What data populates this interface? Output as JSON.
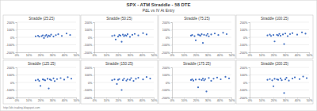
{
  "title": "SPX - ATM Straddle - 58 DTE",
  "subtitle": "P&L vs IV At Entry",
  "footer": "http://dtr-trading.blogspot.com",
  "chart_data": [
    {
      "type": "scatter",
      "title": "Straddle (25:25)",
      "color": "#4472c4",
      "marker": "circle",
      "grid": true,
      "x": [
        16,
        18,
        19,
        21,
        22,
        23,
        24,
        25,
        26,
        27,
        28,
        29,
        31,
        33,
        35,
        38,
        42,
        45
      ],
      "values": [
        12,
        20,
        8,
        15,
        25,
        -10,
        18,
        30,
        5,
        22,
        14,
        35,
        10,
        28,
        40,
        18,
        50,
        30
      ],
      "xlim": [
        0,
        50
      ],
      "xticks": [
        {
          "value": 0,
          "label": "0%"
        },
        {
          "value": 10,
          "label": "10%"
        },
        {
          "value": 20,
          "label": "20%"
        },
        {
          "value": 30,
          "label": "30%"
        },
        {
          "value": 40,
          "label": "40%"
        },
        {
          "value": 50,
          "label": "50%"
        }
      ],
      "ylim": [
        -200,
        200
      ],
      "yticks": [
        {
          "value": -200,
          "label": "-200%"
        },
        {
          "value": -100,
          "label": "-100%"
        },
        {
          "value": 0,
          "label": "0%"
        },
        {
          "value": 100,
          "label": "100%"
        },
        {
          "value": 200,
          "label": "200%"
        }
      ]
    },
    {
      "type": "scatter",
      "title": "Straddle (50:25)",
      "color": "#4472c4",
      "marker": "circle",
      "grid": true,
      "x": [
        15,
        17,
        18,
        20,
        21,
        22,
        23,
        24,
        25,
        26,
        27,
        28,
        30,
        32,
        34,
        37,
        41,
        44
      ],
      "values": [
        18,
        25,
        -30,
        10,
        30,
        22,
        -60,
        35,
        15,
        28,
        20,
        40,
        5,
        32,
        45,
        25,
        55,
        38
      ],
      "xlim": [
        0,
        50
      ],
      "xticks": [
        {
          "value": 0,
          "label": "0%"
        },
        {
          "value": 10,
          "label": "10%"
        },
        {
          "value": 20,
          "label": "20%"
        },
        {
          "value": 30,
          "label": "30%"
        },
        {
          "value": 40,
          "label": "40%"
        },
        {
          "value": 50,
          "label": "50%"
        }
      ],
      "ylim": [
        -200,
        200
      ],
      "yticks": [
        {
          "value": -200,
          "label": "-200%"
        },
        {
          "value": -100,
          "label": "-100%"
        },
        {
          "value": 0,
          "label": "0%"
        },
        {
          "value": 100,
          "label": "100%"
        },
        {
          "value": 200,
          "label": "200%"
        }
      ]
    },
    {
      "type": "scatter",
      "title": "Straddle (75:25)",
      "color": "#4472c4",
      "marker": "circle",
      "grid": true,
      "x": [
        16,
        17,
        19,
        20,
        22,
        23,
        24,
        25,
        26,
        27,
        29,
        30,
        31,
        33,
        36,
        39,
        43,
        46
      ],
      "values": [
        22,
        30,
        15,
        -40,
        35,
        28,
        20,
        40,
        -75,
        32,
        25,
        45,
        12,
        38,
        50,
        30,
        60,
        42
      ],
      "xlim": [
        0,
        50
      ],
      "xticks": [
        {
          "value": 0,
          "label": "0%"
        },
        {
          "value": 10,
          "label": "10%"
        },
        {
          "value": 20,
          "label": "20%"
        },
        {
          "value": 30,
          "label": "30%"
        },
        {
          "value": 40,
          "label": "40%"
        },
        {
          "value": 50,
          "label": "50%"
        }
      ],
      "ylim": [
        -200,
        200
      ],
      "yticks": [
        {
          "value": -200,
          "label": "-200%"
        },
        {
          "value": -100,
          "label": "-100%"
        },
        {
          "value": 0,
          "label": "0%"
        },
        {
          "value": 100,
          "label": "100%"
        },
        {
          "value": 200,
          "label": "200%"
        }
      ]
    },
    {
      "type": "scatter",
      "title": "Straddle (100:25)",
      "color": "#4472c4",
      "marker": "circle",
      "grid": true,
      "x": [
        15,
        17,
        18,
        20,
        21,
        23,
        24,
        25,
        26,
        28,
        29,
        30,
        32,
        34,
        36,
        40,
        44,
        47
      ],
      "values": [
        25,
        35,
        18,
        30,
        -55,
        32,
        25,
        45,
        20,
        38,
        -90,
        50,
        15,
        42,
        55,
        35,
        65,
        48
      ],
      "xlim": [
        0,
        50
      ],
      "xticks": [
        {
          "value": 0,
          "label": "0%"
        },
        {
          "value": 10,
          "label": "10%"
        },
        {
          "value": 20,
          "label": "20%"
        },
        {
          "value": 30,
          "label": "30%"
        },
        {
          "value": 40,
          "label": "40%"
        },
        {
          "value": 50,
          "label": "50%"
        }
      ],
      "ylim": [
        -200,
        200
      ],
      "yticks": [
        {
          "value": -200,
          "label": "-200%"
        },
        {
          "value": -100,
          "label": "-100%"
        },
        {
          "value": 0,
          "label": "0%"
        },
        {
          "value": 100,
          "label": "100%"
        },
        {
          "value": 200,
          "label": "200%"
        }
      ]
    },
    {
      "type": "scatter",
      "title": "Straddle (125:25)",
      "color": "#4472c4",
      "marker": "circle",
      "grid": true,
      "x": [
        16,
        18,
        19,
        20,
        22,
        23,
        24,
        26,
        27,
        28,
        29,
        31,
        32,
        34,
        37,
        40,
        43,
        46
      ],
      "values": [
        28,
        38,
        20,
        -45,
        40,
        35,
        28,
        48,
        -80,
        40,
        30,
        55,
        18,
        45,
        58,
        38,
        70,
        50
      ],
      "xlim": [
        0,
        50
      ],
      "xticks": [
        {
          "value": 0,
          "label": "0%"
        },
        {
          "value": 10,
          "label": "10%"
        },
        {
          "value": 20,
          "label": "20%"
        },
        {
          "value": 30,
          "label": "30%"
        },
        {
          "value": 40,
          "label": "40%"
        },
        {
          "value": 50,
          "label": "50%"
        }
      ],
      "ylim": [
        -200,
        200
      ],
      "yticks": [
        {
          "value": -200,
          "label": "-200%"
        },
        {
          "value": -100,
          "label": "-100%"
        },
        {
          "value": 0,
          "label": "0%"
        },
        {
          "value": 100,
          "label": "100%"
        },
        {
          "value": 200,
          "label": "200%"
        }
      ]
    },
    {
      "type": "scatter",
      "title": "Straddle (150:25)",
      "color": "#4472c4",
      "marker": "circle",
      "grid": true,
      "x": [
        15,
        17,
        19,
        20,
        21,
        23,
        24,
        25,
        27,
        28,
        30,
        31,
        33,
        35,
        37,
        41,
        44,
        47
      ],
      "values": [
        30,
        40,
        -20,
        35,
        45,
        -100,
        30,
        50,
        25,
        42,
        35,
        58,
        20,
        48,
        62,
        40,
        72,
        52
      ],
      "xlim": [
        0,
        50
      ],
      "xticks": [
        {
          "value": 0,
          "label": "0%"
        },
        {
          "value": 10,
          "label": "10%"
        },
        {
          "value": 20,
          "label": "20%"
        },
        {
          "value": 30,
          "label": "30%"
        },
        {
          "value": 40,
          "label": "40%"
        },
        {
          "value": 50,
          "label": "50%"
        }
      ],
      "ylim": [
        -200,
        200
      ],
      "yticks": [
        {
          "value": -200,
          "label": "-200%"
        },
        {
          "value": -100,
          "label": "-100%"
        },
        {
          "value": 0,
          "label": "0%"
        },
        {
          "value": 100,
          "label": "100%"
        },
        {
          "value": 200,
          "label": "200%"
        }
      ]
    },
    {
      "type": "scatter",
      "title": "Straddle (175:25)",
      "color": "#4472c4",
      "marker": "circle",
      "grid": true,
      "x": [
        16,
        17,
        18,
        20,
        22,
        23,
        25,
        26,
        27,
        28,
        29,
        31,
        33,
        35,
        38,
        41,
        45,
        48
      ],
      "values": [
        32,
        42,
        25,
        38,
        -65,
        40,
        32,
        52,
        28,
        45,
        -120,
        60,
        22,
        50,
        65,
        42,
        75,
        55
      ],
      "xlim": [
        0,
        50
      ],
      "xticks": [
        {
          "value": 0,
          "label": "0%"
        },
        {
          "value": 10,
          "label": "10%"
        },
        {
          "value": 20,
          "label": "20%"
        },
        {
          "value": 30,
          "label": "30%"
        },
        {
          "value": 40,
          "label": "40%"
        },
        {
          "value": 50,
          "label": "50%"
        }
      ],
      "ylim": [
        -200,
        200
      ],
      "yticks": [
        {
          "value": -200,
          "label": "-200%"
        },
        {
          "value": -100,
          "label": "-100%"
        },
        {
          "value": 0,
          "label": "0%"
        },
        {
          "value": 100,
          "label": "100%"
        },
        {
          "value": 200,
          "label": "200%"
        }
      ]
    },
    {
      "type": "scatter",
      "title": "Straddle (200:25)",
      "color": "#4472c4",
      "marker": "circle",
      "grid": true,
      "x": [
        15,
        17,
        19,
        20,
        21,
        23,
        24,
        26,
        27,
        29,
        30,
        31,
        33,
        36,
        38,
        42,
        45,
        48
      ],
      "values": [
        35,
        45,
        28,
        -50,
        48,
        42,
        35,
        55,
        30,
        -140,
        40,
        62,
        25,
        52,
        68,
        45,
        78,
        58
      ],
      "xlim": [
        0,
        50
      ],
      "xticks": [
        {
          "value": 0,
          "label": "0%"
        },
        {
          "value": 10,
          "label": "10%"
        },
        {
          "value": 20,
          "label": "20%"
        },
        {
          "value": 30,
          "label": "30%"
        },
        {
          "value": 40,
          "label": "40%"
        },
        {
          "value": 50,
          "label": "50%"
        }
      ],
      "ylim": [
        -200,
        200
      ],
      "yticks": [
        {
          "value": -200,
          "label": "-200%"
        },
        {
          "value": -100,
          "label": "-100%"
        },
        {
          "value": 0,
          "label": "0%"
        },
        {
          "value": 100,
          "label": "100%"
        },
        {
          "value": 200,
          "label": "200%"
        }
      ]
    }
  ]
}
